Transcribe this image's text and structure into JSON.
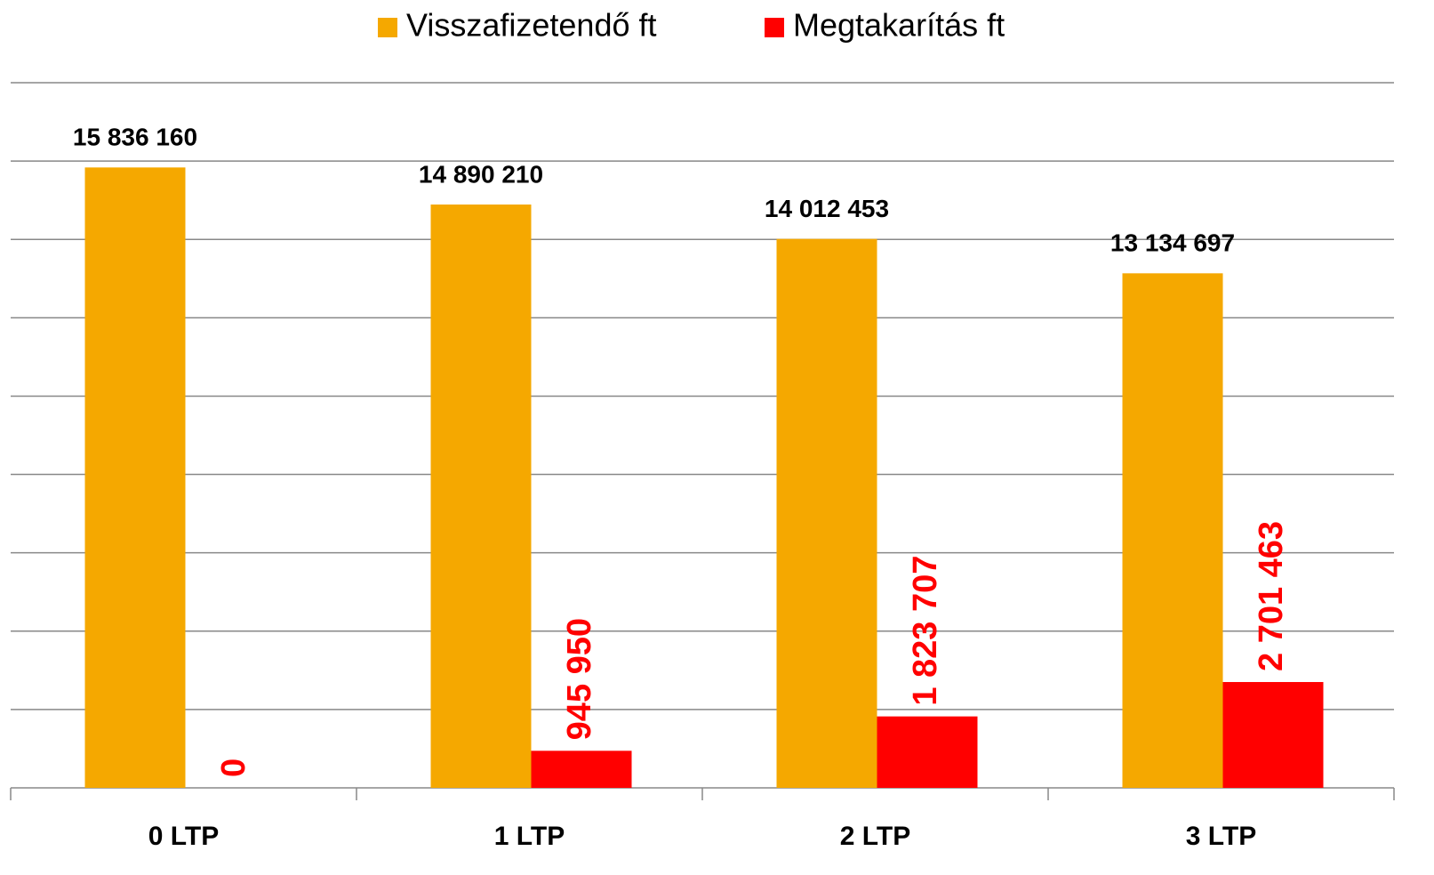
{
  "chart_data": {
    "type": "bar",
    "categories": [
      "0 LTP",
      "1 LTP",
      "2 LTP",
      "3 LTP"
    ],
    "series": [
      {
        "name": "Visszafizetendő ft",
        "color": "#f5a800",
        "values": [
          15836160,
          14890210,
          14012453,
          13134697
        ],
        "value_labels": [
          "15 836 160",
          "14 890 210",
          "14 012 453",
          "13 134 697"
        ]
      },
      {
        "name": "Megtakarítás ft",
        "color": "#ff0000",
        "values": [
          0,
          945950,
          1823707,
          2701463
        ],
        "value_labels": [
          "0",
          "945 950",
          "1 823 707",
          "2 701 463"
        ]
      }
    ],
    "ylim": [
      0,
      18000000
    ],
    "yticks": [
      0,
      2000000,
      4000000,
      6000000,
      8000000,
      10000000,
      12000000,
      14000000,
      16000000,
      18000000
    ],
    "grid": true,
    "legend": "top"
  }
}
